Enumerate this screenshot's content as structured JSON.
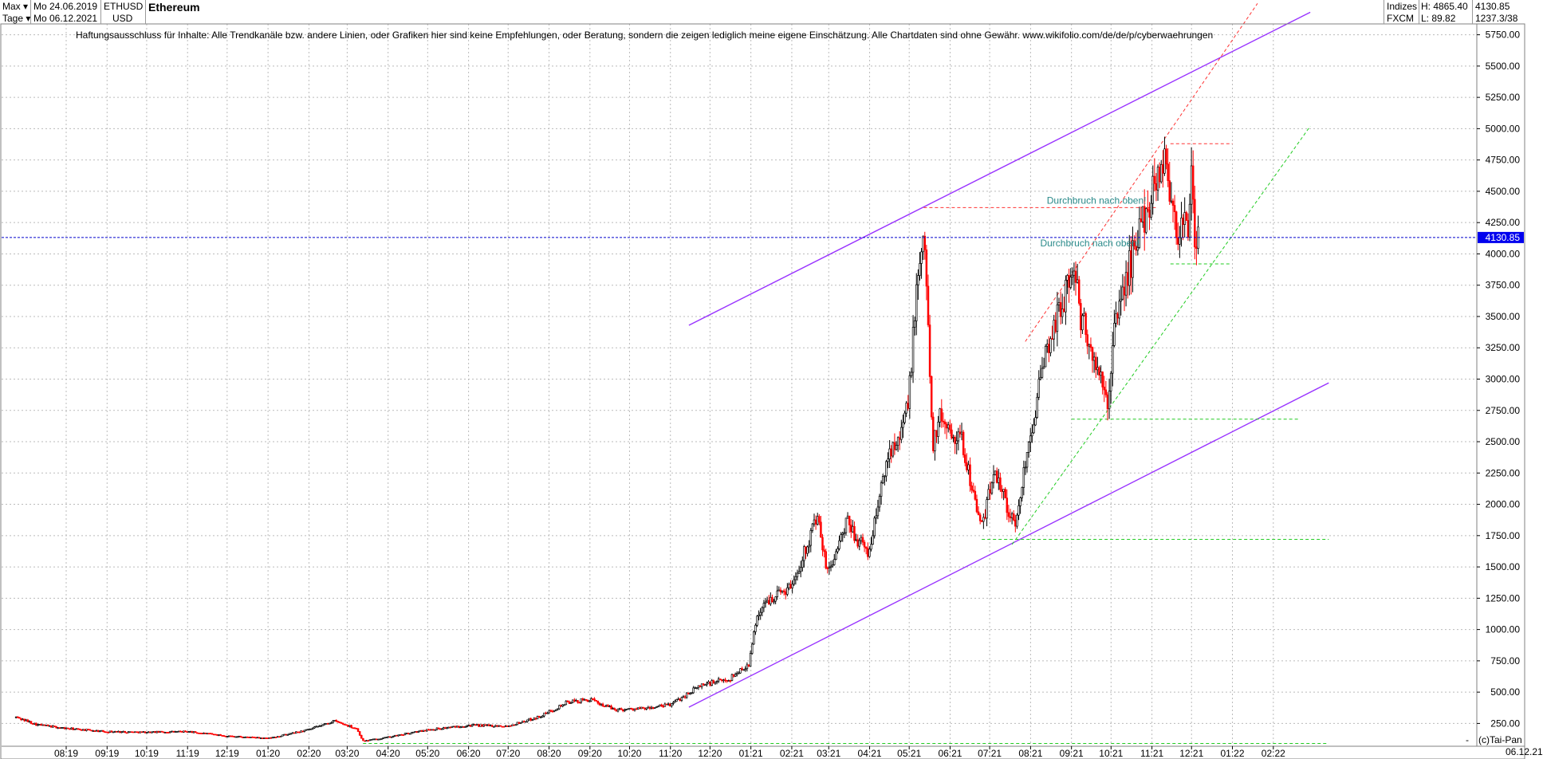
{
  "header": {
    "range_label": "Max",
    "range_start": "Mo 24.06.2019",
    "symbol": "ETHUSD",
    "title": "Ethereum",
    "period_label": "Tage",
    "range_end": "Mo 06.12.2021",
    "currency": "USD",
    "index_label": "Indizes",
    "feed_label": "FXCM",
    "high_label": "H: 4865.40",
    "low_label": "L: 89.82",
    "last_value": "4130.85",
    "bar_info": "1237.3/38"
  },
  "disclaimer": "Haftungsausschluss für Inhalte: Alle Trendkanäle bzw. andere Linien, oder Grafiken hier sind keine Empfehlungen, oder Beratung, sondern die zeigen lediglich meine eigene Einschätzung. Alle Chartdaten sind ohne Gewähr.  www.wikifolio.com/de/de/p/cyberwaehrungen",
  "footer": {
    "copyright": "(c)Tai-Pan",
    "dash": "-",
    "last_date": "06.12.21"
  },
  "colors": {
    "up_candle": "#000000",
    "down_candle": "#ff0000",
    "channel": "#9933ff",
    "support": "#22cc22",
    "resistance": "#ff3333",
    "price_line": "#0000cc",
    "annotation": "#2a8a8a",
    "grid": "#bbbbbb"
  },
  "chart_data": {
    "type": "candlestick",
    "title": "Ethereum",
    "x_ticks": [
      "08:19",
      "09:19",
      "10:19",
      "11:19",
      "12:19",
      "01:20",
      "02:20",
      "03:20",
      "04:20",
      "05:20",
      "06:20",
      "07:20",
      "08:20",
      "09:20",
      "10:20",
      "11:20",
      "12:20",
      "01:21",
      "02:21",
      "03:21",
      "04:21",
      "05:21",
      "06:21",
      "07:21",
      "08:21",
      "09:21",
      "10:21",
      "11:21",
      "12:21",
      "01:22",
      "02:22"
    ],
    "y_ticks": [
      250,
      500,
      750,
      1000,
      1250,
      1500,
      1750,
      2000,
      2250,
      2500,
      2750,
      3000,
      3250,
      3500,
      3750,
      4000,
      4250,
      4500,
      4750,
      5000,
      5250,
      5500,
      5750
    ],
    "ylim": [
      90,
      5880
    ],
    "grid": true,
    "last_price": 4130.85,
    "last_price_label": "4130.85",
    "high": 4865.4,
    "low": 89.82,
    "close_path": [
      [
        "2019-06-24",
        300
      ],
      [
        "2019-07-10",
        240
      ],
      [
        "2019-08-01",
        210
      ],
      [
        "2019-09-01",
        185
      ],
      [
        "2019-10-01",
        180
      ],
      [
        "2019-11-01",
        185
      ],
      [
        "2019-12-01",
        150
      ],
      [
        "2020-01-01",
        130
      ],
      [
        "2020-02-01",
        200
      ],
      [
        "2020-02-20",
        270
      ],
      [
        "2020-03-08",
        210
      ],
      [
        "2020-03-13",
        110
      ],
      [
        "2020-04-01",
        140
      ],
      [
        "2020-05-01",
        200
      ],
      [
        "2020-06-01",
        235
      ],
      [
        "2020-07-01",
        230
      ],
      [
        "2020-07-25",
        305
      ],
      [
        "2020-08-15",
        420
      ],
      [
        "2020-09-01",
        440
      ],
      [
        "2020-09-20",
        360
      ],
      [
        "2020-10-15",
        370
      ],
      [
        "2020-11-01",
        400
      ],
      [
        "2020-11-25",
        560
      ],
      [
        "2020-12-15",
        600
      ],
      [
        "2020-12-31",
        735
      ],
      [
        "2021-01-05",
        1100
      ],
      [
        "2021-01-15",
        1250
      ],
      [
        "2021-02-01",
        1350
      ],
      [
        "2021-02-20",
        1900
      ],
      [
        "2021-02-28",
        1450
      ],
      [
        "2021-03-15",
        1850
      ],
      [
        "2021-03-31",
        1600
      ],
      [
        "2021-04-15",
        2400
      ],
      [
        "2021-04-30",
        2750
      ],
      [
        "2021-05-05",
        3500
      ],
      [
        "2021-05-12",
        4200
      ],
      [
        "2021-05-19",
        2500
      ],
      [
        "2021-05-25",
        2700
      ],
      [
        "2021-06-10",
        2500
      ],
      [
        "2021-06-25",
        1800
      ],
      [
        "2021-07-05",
        2300
      ],
      [
        "2021-07-20",
        1800
      ],
      [
        "2021-08-01",
        2600
      ],
      [
        "2021-08-15",
        3300
      ],
      [
        "2021-09-03",
        3900
      ],
      [
        "2021-09-08",
        3500
      ],
      [
        "2021-09-28",
        2800
      ],
      [
        "2021-10-05",
        3500
      ],
      [
        "2021-10-20",
        4100
      ],
      [
        "2021-11-10",
        4800
      ],
      [
        "2021-11-20",
        4200
      ],
      [
        "2021-11-28",
        4200
      ],
      [
        "2021-12-01",
        4600
      ],
      [
        "2021-12-04",
        4000
      ],
      [
        "2021-12-06",
        4130
      ]
    ],
    "trendlines": [
      {
        "kind": "channel-upper",
        "style": "solid",
        "from": [
          "2020-11-15",
          3430
        ],
        "to": [
          "2022-03-01",
          5930
        ]
      },
      {
        "kind": "channel-lower",
        "style": "solid",
        "from": [
          "2020-11-15",
          380
        ],
        "to": [
          "2022-03-15",
          2970
        ]
      },
      {
        "kind": "resistance",
        "style": "dashed",
        "from": [
          "2021-05-12",
          4370
        ],
        "to": [
          "2021-11-05",
          4370
        ]
      },
      {
        "kind": "resistance",
        "style": "dashed",
        "from": [
          "2021-11-15",
          4880
        ],
        "to": [
          "2022-01-01",
          4880
        ]
      },
      {
        "kind": "resistance",
        "style": "dashed-diagonal",
        "from": [
          "2021-07-28",
          3300
        ],
        "to": [
          "2022-01-20",
          6000
        ]
      },
      {
        "kind": "support",
        "style": "dashed",
        "from": [
          "2021-06-25",
          1720
        ],
        "to": [
          "2022-03-15",
          1720
        ]
      },
      {
        "kind": "support",
        "style": "dashed",
        "from": [
          "2021-09-01",
          2680
        ],
        "to": [
          "2022-02-20",
          2680
        ]
      },
      {
        "kind": "support",
        "style": "dashed",
        "from": [
          "2021-11-15",
          3920
        ],
        "to": [
          "2021-12-30",
          3920
        ]
      },
      {
        "kind": "support",
        "style": "dashed-diagonal",
        "from": [
          "2021-07-18",
          1680
        ],
        "to": [
          "2022-03-01",
          5020
        ]
      },
      {
        "kind": "support",
        "style": "dashed",
        "from": [
          "2020-03-13",
          90
        ],
        "to": [
          "2022-03-15",
          90
        ]
      }
    ],
    "annotations": [
      {
        "text": "Durchbruch nach oben!",
        "at": [
          "2021-09-20",
          4400
        ]
      },
      {
        "text": "Durchbruch nach oben!",
        "at": [
          "2021-09-15",
          4060
        ]
      }
    ]
  }
}
